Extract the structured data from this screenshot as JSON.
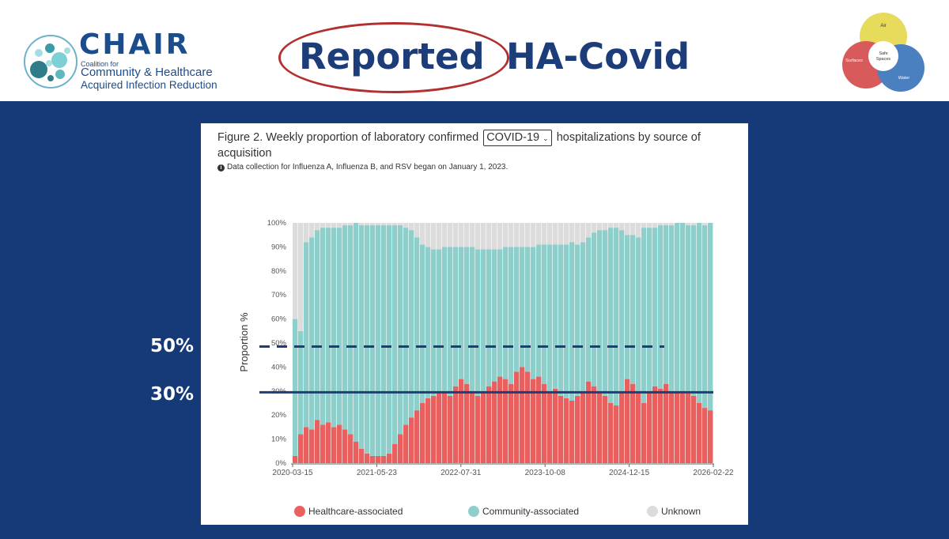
{
  "header": {
    "logo": {
      "name": "CHAIR",
      "small": "Coalition for",
      "line1": "Community & Healthcare",
      "line2": "Acquired  Infection  Reduction"
    },
    "title_reported": "Reported",
    "title_rest": "HA-Covid",
    "right_logo": {
      "top": "Air",
      "center1": "Safe",
      "center2": "Spaces",
      "left": "Surfaces",
      "right": "Water"
    }
  },
  "overlay": {
    "label_50": "50%",
    "label_30": "30%",
    "line_50_value": 48.5,
    "line_30_value": 29.5
  },
  "figure": {
    "title_prefix": "Figure 2. Weekly proportion of laboratory confirmed",
    "select_value": "COVID-19",
    "title_suffix": "hospitalizations by source of acquisition",
    "note": "Data collection for Influenza A, Influenza B, and RSV began on January 1, 2023."
  },
  "colors": {
    "healthcare": "#e9605f",
    "community": "#8fcfcb",
    "unknown": "#dcdcdc",
    "panel": "#163a78",
    "overlay_line": "#1f3d7a"
  },
  "chart_data": {
    "type": "bar",
    "stacked": true,
    "percent": true,
    "ylabel": "Proportion %",
    "ylim": [
      0,
      100
    ],
    "y_ticks": [
      "0%",
      "10%",
      "20%",
      "30%",
      "40%",
      "50%",
      "60%",
      "70%",
      "80%",
      "90%",
      "100%"
    ],
    "x_ticks": [
      "2020-03-15",
      "2021-05-23",
      "2022-07-31",
      "2023-10-08",
      "2024-12-15",
      "2026-02-22"
    ],
    "x_start": "2020-03-15",
    "x_end": "2026-02-22",
    "sample_interval_weeks": 4,
    "series": [
      {
        "name": "Healthcare-associated",
        "values": [
          3,
          12,
          15,
          14,
          18,
          16,
          17,
          15,
          16,
          14,
          12,
          9,
          6,
          4,
          3,
          3,
          3,
          4,
          8,
          12,
          16,
          19,
          22,
          25,
          27,
          28,
          29,
          30,
          28,
          32,
          35,
          33,
          30,
          28,
          30,
          32,
          34,
          36,
          35,
          33,
          38,
          40,
          38,
          35,
          36,
          33,
          30,
          31,
          28,
          27,
          26,
          28,
          30,
          34,
          32,
          30,
          28,
          25,
          24,
          30,
          35,
          33,
          30,
          25,
          30,
          32,
          31,
          33,
          30,
          30,
          29,
          29,
          28,
          25,
          23,
          22
        ]
      },
      {
        "name": "Community-associated",
        "values": [
          57,
          43,
          77,
          80,
          79,
          82,
          81,
          83,
          82,
          85,
          87,
          91,
          93,
          95,
          96,
          96,
          96,
          95,
          91,
          87,
          82,
          78,
          72,
          66,
          63,
          61,
          60,
          60,
          62,
          58,
          55,
          57,
          60,
          61,
          59,
          57,
          55,
          53,
          55,
          57,
          52,
          50,
          52,
          55,
          55,
          58,
          61,
          60,
          63,
          64,
          66,
          63,
          62,
          60,
          64,
          67,
          69,
          73,
          74,
          67,
          60,
          62,
          64,
          73,
          68,
          66,
          68,
          66,
          69,
          70,
          71,
          70,
          71,
          75,
          76,
          78
        ]
      },
      {
        "name": "Unknown",
        "values": [
          40,
          45,
          8,
          6,
          3,
          2,
          2,
          2,
          2,
          1,
          1,
          0,
          1,
          1,
          1,
          1,
          1,
          1,
          1,
          1,
          2,
          3,
          6,
          9,
          10,
          11,
          11,
          10,
          10,
          10,
          10,
          10,
          10,
          11,
          11,
          11,
          11,
          11,
          10,
          10,
          10,
          10,
          10,
          10,
          9,
          9,
          9,
          9,
          9,
          9,
          8,
          9,
          8,
          6,
          4,
          3,
          3,
          2,
          2,
          3,
          5,
          5,
          6,
          2,
          2,
          2,
          1,
          1,
          1,
          0,
          0,
          1,
          1,
          0,
          1,
          0
        ]
      }
    ],
    "legend_position": "bottom",
    "grid": false
  }
}
